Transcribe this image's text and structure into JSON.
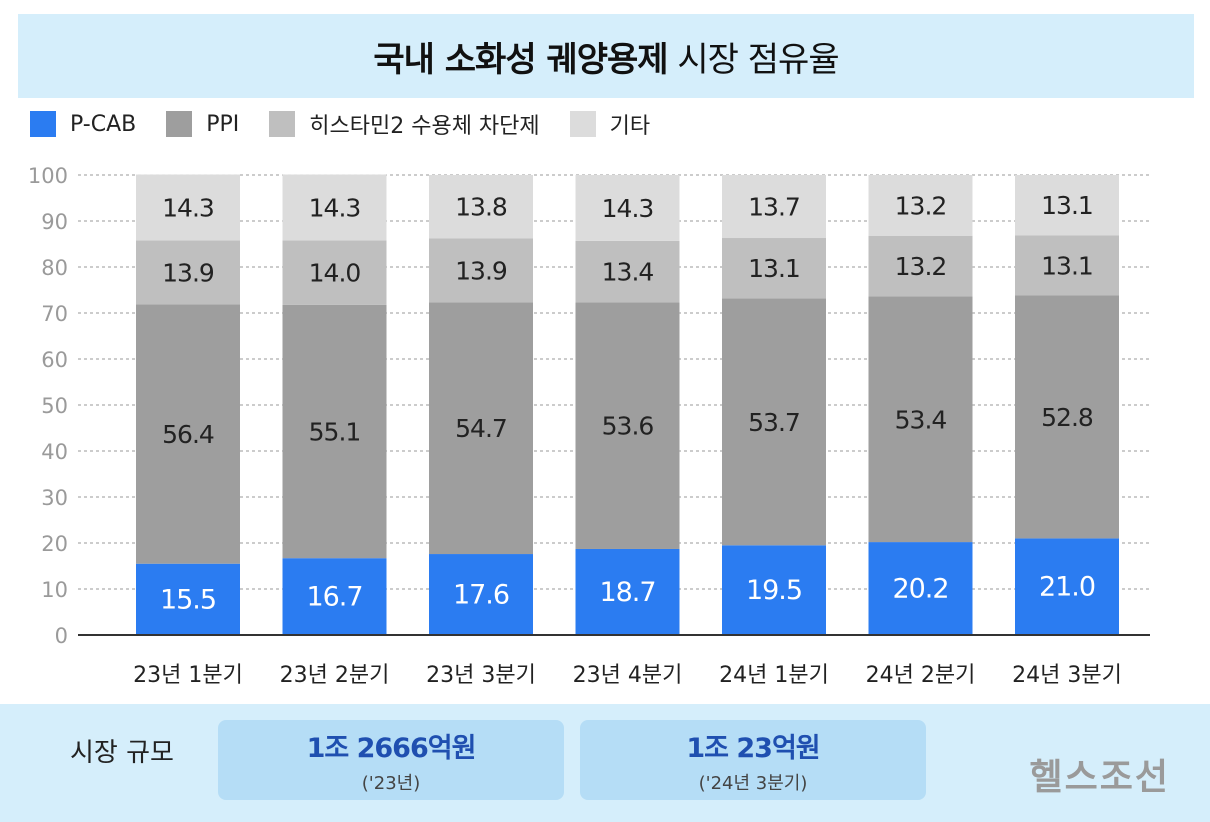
{
  "colors": {
    "pcab": "#2b7cf1",
    "ppi": "#9e9e9e",
    "h2ra": "#bfbfbf",
    "other": "#dcdcdc",
    "header_bg": "#d5eefb",
    "box_bg": "#b5ddf6"
  },
  "header": {
    "title_bold": "국내 소화성 궤양용제",
    "title_rest": "시장 점유율"
  },
  "legend": [
    {
      "label": "P-CAB",
      "color": "#2b7cf1"
    },
    {
      "label": "PPI",
      "color": "#9e9e9e"
    },
    {
      "label": "히스타민2 수용체 차단제",
      "color": "#bfbfbf"
    },
    {
      "label": "기타",
      "color": "#dcdcdc"
    }
  ],
  "chart_data": {
    "type": "bar",
    "stacked": true,
    "categories": [
      "23년 1분기",
      "23년 2분기",
      "23년 3분기",
      "23년 4분기",
      "24년 1분기",
      "24년 2분기",
      "24년 3분기"
    ],
    "series": [
      {
        "name": "P-CAB",
        "values": [
          15.5,
          16.7,
          17.6,
          18.7,
          19.5,
          20.2,
          21.0
        ]
      },
      {
        "name": "PPI",
        "values": [
          56.4,
          55.1,
          54.7,
          53.6,
          53.7,
          53.4,
          52.8
        ]
      },
      {
        "name": "히스타민2 수용체 차단제",
        "values": [
          13.9,
          14.0,
          13.9,
          13.4,
          13.1,
          13.2,
          13.1
        ]
      },
      {
        "name": "기타",
        "values": [
          14.3,
          14.3,
          13.8,
          14.3,
          13.7,
          13.2,
          13.1
        ]
      }
    ],
    "label_text": [
      [
        "15.5",
        "16.7",
        "17.6",
        "18.7",
        "19.5",
        "20.2",
        "21.0"
      ],
      [
        "56.4",
        "55.1",
        "54.7",
        "53.6",
        "53.7",
        "53.4",
        "52.8"
      ],
      [
        "13.9",
        "14.0",
        "13.9",
        "13.4",
        "13.1",
        "13.2",
        "13.1"
      ],
      [
        "14.3",
        "14.3",
        "13.8",
        "14.3",
        "13.7",
        "13.2",
        "13.1"
      ]
    ],
    "yticks": [
      "0",
      "10",
      "20",
      "30",
      "40",
      "50",
      "60",
      "70",
      "80",
      "90",
      "100"
    ],
    "ylim": [
      0,
      100
    ],
    "grid": true,
    "legend_position": "top-left"
  },
  "footer": {
    "label": "시장 규모",
    "stats": [
      {
        "main": "1조 2666억원",
        "sub": "('23년)"
      },
      {
        "main": "1조 23억원",
        "sub": "('24년 3분기)"
      }
    ],
    "logo": "헬스조선"
  }
}
